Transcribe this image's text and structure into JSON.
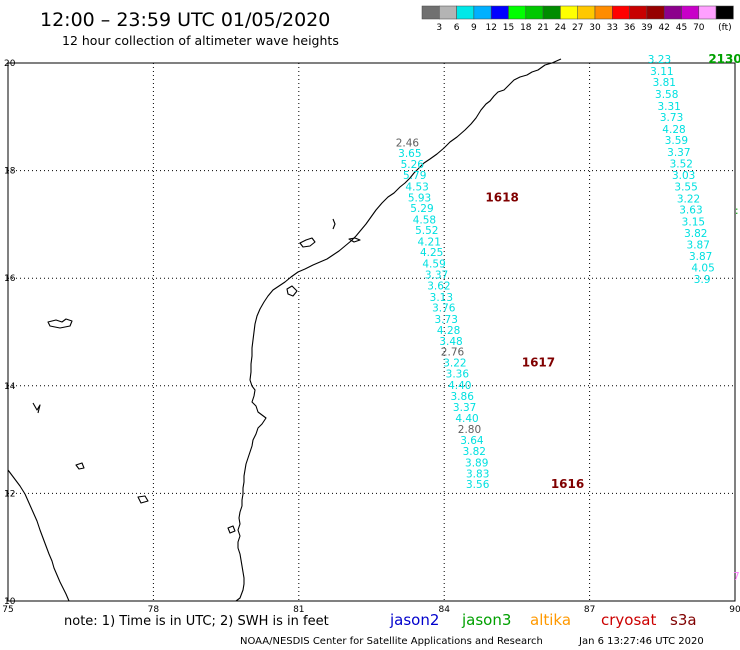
{
  "header": {
    "title": "12:00 – 23:59 UTC 01/05/2020",
    "subtitle": "12 hour collection of altimeter wave heights"
  },
  "legend": {
    "unit": "(ft)",
    "swatches": [
      {
        "label": "",
        "color": "#707070"
      },
      {
        "label": "3",
        "color": "#b4b4b4"
      },
      {
        "label": "6",
        "color": "#00e8e8"
      },
      {
        "label": "9",
        "color": "#00b0ff"
      },
      {
        "label": "12",
        "color": "#0000ff"
      },
      {
        "label": "15",
        "color": "#00ff00"
      },
      {
        "label": "18",
        "color": "#00c800"
      },
      {
        "label": "21",
        "color": "#008c00"
      },
      {
        "label": "24",
        "color": "#ffff00"
      },
      {
        "label": "27",
        "color": "#ffc800"
      },
      {
        "label": "30",
        "color": "#ff8c00"
      },
      {
        "label": "33",
        "color": "#ff0000"
      },
      {
        "label": "36",
        "color": "#c80000"
      },
      {
        "label": "39",
        "color": "#960000"
      },
      {
        "label": "42",
        "color": "#8c008c"
      },
      {
        "label": "45",
        "color": "#c800c8"
      },
      {
        "label": "70",
        "color": "#ffa0ff"
      },
      {
        "label": "",
        "color": "#000000"
      }
    ]
  },
  "footer": {
    "note": "note:  1) Time is in UTC; 2) SWH is in feet",
    "credit": "NOAA/NESDIS Center for Satellite Applications and Research",
    "timestamp": "Jan  6 13:27:46 UTC 2020",
    "satellites": [
      {
        "name": "jason2",
        "color": "#0000cc"
      },
      {
        "name": "jason3",
        "color": "#00a000"
      },
      {
        "name": "altika",
        "color": "#ff9900"
      },
      {
        "name": "cryosat",
        "color": "#cc0000"
      },
      {
        "name": "s3a",
        "color": "#800000"
      }
    ]
  },
  "chart_data": {
    "type": "scatter",
    "xlim": [
      75,
      90
    ],
    "ylim": [
      10,
      20
    ],
    "x_ticks": [
      "75",
      "78",
      "81",
      "84",
      "87",
      "90"
    ],
    "y_ticks": [
      "10",
      "12",
      "14",
      "16",
      "18",
      "20"
    ],
    "grid": true,
    "colors": {
      "low": "#00e0e0",
      "mid": "#606060",
      "time_s3a": "#800000",
      "time_jason3": "#00a000"
    },
    "series": [
      {
        "name": "s3a",
        "labels": [
          {
            "x": 83.0,
            "y": 18.45,
            "value": "2.46"
          },
          {
            "x": 83.05,
            "y": 18.25,
            "value": "3.65"
          },
          {
            "x": 83.1,
            "y": 18.05,
            "value": "5.26"
          },
          {
            "x": 83.15,
            "y": 17.84,
            "value": "5.79"
          },
          {
            "x": 83.2,
            "y": 17.63,
            "value": "4.53"
          },
          {
            "x": 83.25,
            "y": 17.43,
            "value": "5.93"
          },
          {
            "x": 83.3,
            "y": 17.23,
            "value": "5.29"
          },
          {
            "x": 83.35,
            "y": 17.02,
            "value": "4.58"
          },
          {
            "x": 83.4,
            "y": 16.82,
            "value": "5.52"
          },
          {
            "x": 83.45,
            "y": 16.61,
            "value": "4.21"
          },
          {
            "x": 83.5,
            "y": 16.41,
            "value": "4.25"
          },
          {
            "x": 83.55,
            "y": 16.2,
            "value": "4.59"
          },
          {
            "x": 83.6,
            "y": 15.99,
            "value": "3.37"
          },
          {
            "x": 83.65,
            "y": 15.79,
            "value": "3.62"
          },
          {
            "x": 83.7,
            "y": 15.58,
            "value": "3.13"
          },
          {
            "x": 83.75,
            "y": 15.38,
            "value": "3.76"
          },
          {
            "x": 83.8,
            "y": 15.17,
            "value": "3.73"
          },
          {
            "x": 83.85,
            "y": 14.96,
            "value": "4.28"
          },
          {
            "x": 83.9,
            "y": 14.76,
            "value": "3.48"
          },
          {
            "x": 83.93,
            "y": 14.56,
            "value": "2.76"
          },
          {
            "x": 83.98,
            "y": 14.36,
            "value": "3.22"
          },
          {
            "x": 84.03,
            "y": 14.15,
            "value": "3.36"
          },
          {
            "x": 84.08,
            "y": 13.94,
            "value": "4.40"
          },
          {
            "x": 84.13,
            "y": 13.74,
            "value": "3.86"
          },
          {
            "x": 84.18,
            "y": 13.53,
            "value": "3.37"
          },
          {
            "x": 84.23,
            "y": 13.33,
            "value": "4.40"
          },
          {
            "x": 84.28,
            "y": 13.12,
            "value": "2.80"
          },
          {
            "x": 84.33,
            "y": 12.92,
            "value": "3.64"
          },
          {
            "x": 84.38,
            "y": 12.71,
            "value": "3.82"
          },
          {
            "x": 84.43,
            "y": 12.5,
            "value": "3.89"
          },
          {
            "x": 84.45,
            "y": 12.3,
            "value": "3.83"
          },
          {
            "x": 84.45,
            "y": 12.1,
            "value": "3.56"
          }
        ],
        "times": [
          {
            "x": 84.85,
            "y": 17.43,
            "value": "1618"
          },
          {
            "x": 85.6,
            "y": 14.36,
            "value": "1617"
          },
          {
            "x": 86.2,
            "y": 12.1,
            "value": "1616"
          }
        ]
      },
      {
        "name": "jason3",
        "labels": [
          {
            "x": 88.2,
            "y": 20.0,
            "value": "3.23"
          },
          {
            "x": 88.25,
            "y": 19.78,
            "value": "3.11"
          },
          {
            "x": 88.3,
            "y": 19.57,
            "value": "3.81"
          },
          {
            "x": 88.35,
            "y": 19.35,
            "value": "3.58"
          },
          {
            "x": 88.4,
            "y": 19.13,
            "value": "3.31"
          },
          {
            "x": 88.45,
            "y": 18.92,
            "value": "3.73"
          },
          {
            "x": 88.5,
            "y": 18.7,
            "value": "4.28"
          },
          {
            "x": 88.55,
            "y": 18.49,
            "value": "3.59"
          },
          {
            "x": 88.6,
            "y": 18.27,
            "value": "3.37"
          },
          {
            "x": 88.65,
            "y": 18.06,
            "value": "3.52"
          },
          {
            "x": 88.7,
            "y": 17.84,
            "value": "3.03"
          },
          {
            "x": 88.75,
            "y": 17.63,
            "value": "3.55"
          },
          {
            "x": 88.8,
            "y": 17.41,
            "value": "3.22"
          },
          {
            "x": 88.85,
            "y": 17.2,
            "value": "3.63"
          },
          {
            "x": 88.9,
            "y": 16.98,
            "value": "3.15"
          },
          {
            "x": 88.95,
            "y": 16.77,
            "value": "3.82"
          },
          {
            "x": 89.0,
            "y": 16.55,
            "value": "3.87"
          },
          {
            "x": 89.05,
            "y": 16.34,
            "value": "3.87"
          },
          {
            "x": 89.1,
            "y": 16.12,
            "value": "4.05"
          },
          {
            "x": 89.15,
            "y": 15.91,
            "value": "3.9"
          }
        ],
        "times": [
          {
            "x": 89.45,
            "y": 20.0,
            "value": "2130"
          }
        ]
      }
    ]
  }
}
